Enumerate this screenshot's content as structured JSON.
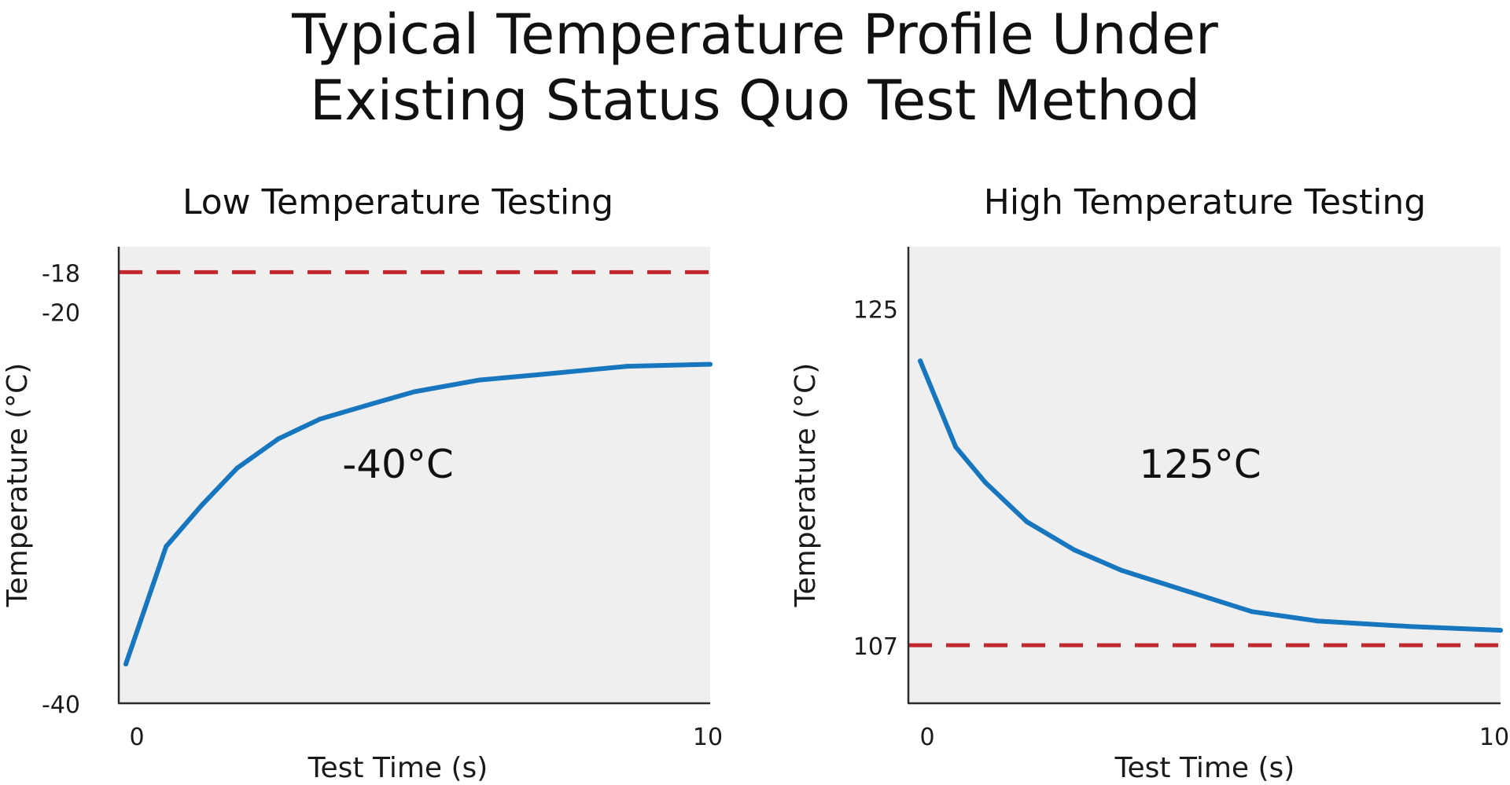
{
  "title": [
    "Typical Temperature Profile Under",
    "Existing Status Quo Test Method"
  ],
  "chart_data": [
    {
      "type": "line",
      "title": "Low Temperature Testing",
      "xlabel": "Test Time (s)",
      "ylabel": "Temperature (°C)",
      "xlim": [
        0,
        10
      ],
      "ylim": [
        -40,
        -16.7
      ],
      "xticks": [
        0,
        10
      ],
      "yticks": [
        -20,
        -18,
        -40
      ],
      "annotation": "-40°C",
      "reference_line": {
        "y": -18,
        "color": "#c1272d",
        "style": "dashed"
      },
      "series": [
        {
          "color": "#1776bd",
          "x": [
            0.12,
            0.8,
            1.4,
            2.0,
            2.7,
            3.4,
            4.3,
            5.0,
            6.1,
            7.2,
            8.6,
            10.0
          ],
          "values": [
            -38.0,
            -32.0,
            -29.9,
            -28.0,
            -26.5,
            -25.5,
            -24.7,
            -24.1,
            -23.5,
            -23.2,
            -22.8,
            -22.7
          ]
        }
      ],
      "grid": false
    },
    {
      "type": "line",
      "title": "High Temperature Testing",
      "xlabel": "Test Time (s)",
      "ylabel": "Temperature (°C)",
      "xlim": [
        0,
        10
      ],
      "ylim": [
        103.9,
        128.3
      ],
      "xticks": [
        0,
        10
      ],
      "yticks": [
        125,
        107
      ],
      "annotation": "125°C",
      "reference_line": {
        "y": 107,
        "color": "#c1272d",
        "style": "dashed"
      },
      "series": [
        {
          "color": "#1776bd",
          "x": [
            0.2,
            0.8,
            1.3,
            2.0,
            2.8,
            3.6,
            4.7,
            5.8,
            6.9,
            8.5,
            10.0
          ],
          "values": [
            122.2,
            117.6,
            115.7,
            113.6,
            112.1,
            111.0,
            109.9,
            108.8,
            108.3,
            108.0,
            107.8
          ]
        }
      ],
      "grid": false
    }
  ]
}
